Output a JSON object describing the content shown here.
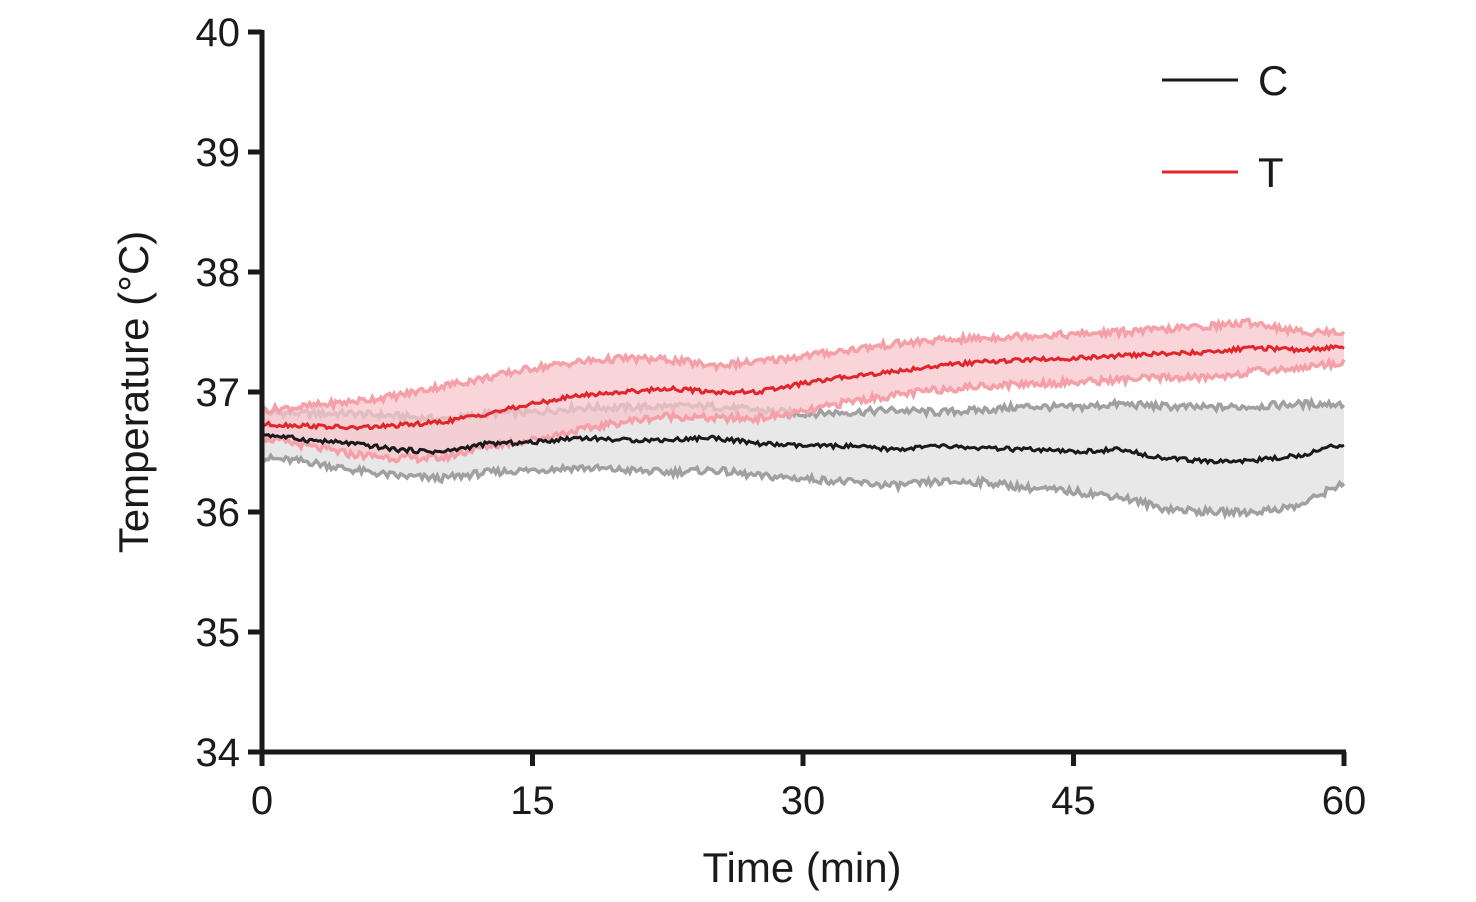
{
  "chart_data": {
    "type": "line",
    "xlabel": "Time (min)",
    "ylabel": "Temperature (°C)",
    "xlim": [
      0,
      60
    ],
    "ylim": [
      34,
      40
    ],
    "x_ticks": [
      0,
      15,
      30,
      45,
      60
    ],
    "y_ticks": [
      34,
      35,
      36,
      37,
      38,
      39,
      40
    ],
    "grid": false,
    "legend_position": "top-right",
    "series": [
      {
        "name": "C",
        "line_color": "#1a1a1a",
        "band_edge_color": "#a0a0a0",
        "band_fill_color": "#e4e4e4",
        "x": [
          0,
          2.5,
          5,
          7.5,
          10,
          12.5,
          15,
          17.5,
          20,
          22.5,
          25,
          27.5,
          30,
          32.5,
          35,
          37.5,
          40,
          42.5,
          45,
          47.5,
          50,
          52.5,
          55,
          57.5,
          60
        ],
        "mean": [
          36.65,
          36.6,
          36.57,
          36.52,
          36.5,
          36.57,
          36.58,
          36.62,
          36.6,
          36.6,
          36.62,
          36.57,
          36.55,
          36.55,
          36.52,
          36.55,
          36.53,
          36.52,
          36.5,
          36.52,
          36.45,
          36.42,
          36.43,
          36.47,
          36.57
        ],
        "upper": [
          36.83,
          36.82,
          36.82,
          36.8,
          36.77,
          36.82,
          36.83,
          36.87,
          36.87,
          36.88,
          36.88,
          36.85,
          36.82,
          36.83,
          36.85,
          36.83,
          36.85,
          36.88,
          36.87,
          36.9,
          36.88,
          36.87,
          36.88,
          36.9,
          36.9
        ],
        "lower": [
          36.45,
          36.42,
          36.35,
          36.3,
          36.28,
          36.33,
          36.35,
          36.37,
          36.35,
          36.33,
          36.35,
          36.3,
          36.28,
          36.25,
          36.22,
          36.25,
          36.25,
          36.2,
          36.17,
          36.13,
          36.03,
          36.0,
          36.0,
          36.05,
          36.25
        ]
      },
      {
        "name": "T",
        "line_color": "#e0262b",
        "band_edge_color": "#f5a0a8",
        "band_fill_color": "#f7c6cc",
        "x": [
          0,
          2.5,
          5,
          7.5,
          10,
          12.5,
          15,
          17.5,
          20,
          22.5,
          25,
          27.5,
          30,
          32.5,
          35,
          37.5,
          40,
          42.5,
          45,
          47.5,
          50,
          52.5,
          55,
          57.5,
          60
        ],
        "mean": [
          36.73,
          36.72,
          36.7,
          36.72,
          36.75,
          36.82,
          36.9,
          36.97,
          37.0,
          37.03,
          37.0,
          37.0,
          37.07,
          37.13,
          37.17,
          37.22,
          37.25,
          37.27,
          37.28,
          37.3,
          37.32,
          37.33,
          37.37,
          37.35,
          37.38
        ],
        "upper": [
          36.85,
          36.88,
          36.92,
          36.97,
          37.05,
          37.12,
          37.2,
          37.25,
          37.28,
          37.27,
          37.22,
          37.25,
          37.3,
          37.35,
          37.4,
          37.43,
          37.45,
          37.47,
          37.48,
          37.5,
          37.52,
          37.55,
          37.58,
          37.5,
          37.5
        ],
        "lower": [
          36.62,
          36.55,
          36.48,
          36.45,
          36.45,
          36.55,
          36.6,
          36.68,
          36.75,
          36.8,
          36.78,
          36.78,
          36.83,
          36.92,
          36.97,
          37.02,
          37.05,
          37.07,
          37.08,
          37.1,
          37.12,
          37.12,
          37.17,
          37.2,
          37.25
        ]
      }
    ]
  }
}
